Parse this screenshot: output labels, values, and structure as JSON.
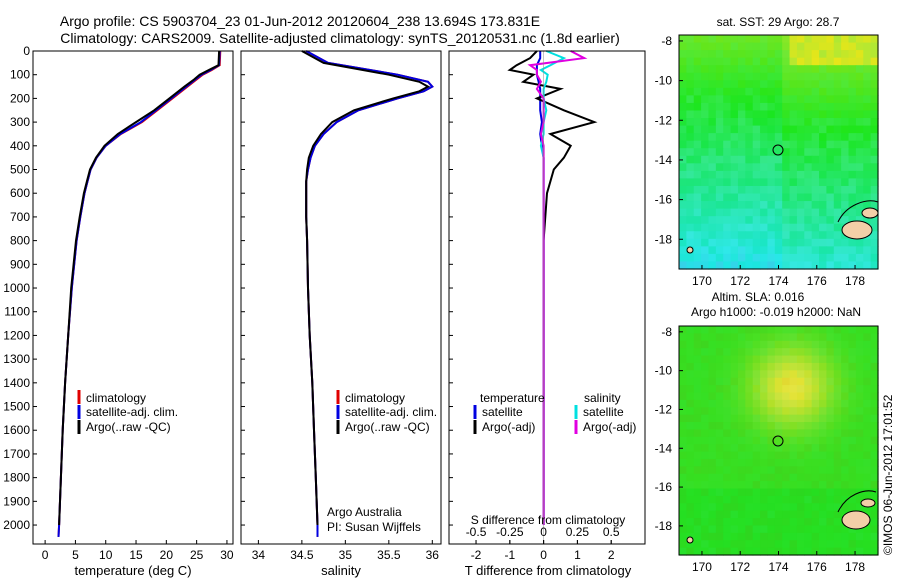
{
  "title_line1": "Argo profile: CS 5903704_23 01-Jun-2012 20120604_238 13.694S 173.831E",
  "title_line2": "Climatology: CARS2009. Satellite-adjusted climatology: synTS_20120531.nc (1.8d earlier)",
  "depth_ticks": [
    "0",
    "100",
    "200",
    "300",
    "400",
    "500",
    "600",
    "700",
    "800",
    "900",
    "1000",
    "1100",
    "1200",
    "1300",
    "1400",
    "1500",
    "1600",
    "1700",
    "1800",
    "1900",
    "2000"
  ],
  "colors": {
    "climatology": "#e00000",
    "satellite": "#0000e0",
    "argo": "#000000",
    "sal_satellite": "#00e0e0",
    "sal_argo": "#e000e0"
  },
  "temperature_panel": {
    "xlabel": "temperature (deg C)",
    "xticks": [
      "0",
      "5",
      "10",
      "15",
      "20",
      "25",
      "30"
    ],
    "legend": [
      "climatology",
      "satellite-adj. clim.",
      "Argo(..raw -QC)"
    ]
  },
  "salinity_panel": {
    "xlabel": "salinity",
    "xticks": [
      "34",
      "34.5",
      "35",
      "35.5",
      "36"
    ],
    "legend": [
      "climatology",
      "satellite-adj. clim.",
      "Argo(..raw -QC)"
    ],
    "note_line1": "Argo Australia",
    "note_line2": "PI: Susan Wijffels"
  },
  "diff_panel": {
    "xlabel_top": "S difference from climatology",
    "xlabel_bottom": "T difference from climatology",
    "top_ticks": [
      "-0.5",
      "-0.25",
      "0",
      "0.25",
      "0.5"
    ],
    "bottom_ticks": [
      "-2",
      "-1",
      "0",
      "1",
      "2"
    ],
    "legend_temp_title": "temperature",
    "legend_temp": [
      "satellite",
      "Argo(-adj)"
    ],
    "legend_sal_title": "salinity",
    "legend_sal": [
      "satellite",
      "Argo(-adj)"
    ]
  },
  "sst_map": {
    "title": "sat. SST: 29 Argo: 28.7",
    "yticks": [
      "-8",
      "-10",
      "-12",
      "-14",
      "-16",
      "-18"
    ],
    "xticks": [
      "170",
      "172",
      "174",
      "176",
      "178"
    ]
  },
  "sla_map": {
    "title_line1": "Altim. SLA: 0.016",
    "title_line2": "Argo h1000: -0.019 h2000: NaN",
    "yticks": [
      "-8",
      "-10",
      "-12",
      "-14",
      "-16",
      "-18"
    ],
    "xticks": [
      "170",
      "172",
      "174",
      "176",
      "178"
    ]
  },
  "side_stamp": "©IMOS 06-Jun-2012 17:01:52",
  "chart_data": [
    {
      "type": "line",
      "title": "",
      "xlabel": "temperature (deg C)",
      "ylabel": "",
      "xlim": [
        -2,
        31
      ],
      "ylim": [
        2080,
        0
      ],
      "y": [
        0,
        60,
        80,
        100,
        120,
        150,
        200,
        250,
        300,
        350,
        400,
        450,
        500,
        550,
        600,
        700,
        800,
        900,
        1000,
        1200,
        1400,
        1600,
        1800,
        2000,
        2050
      ],
      "series": [
        {
          "name": "climatology",
          "values": [
            28.9,
            28.8,
            27.5,
            26.0,
            25.0,
            23.5,
            21.0,
            18.5,
            16.0,
            12.5,
            10.0,
            8.5,
            7.5,
            7.0,
            6.5,
            5.8,
            5.2,
            4.8,
            4.4,
            3.8,
            3.3,
            2.9,
            2.6,
            2.3,
            2.2
          ]
        },
        {
          "name": "satellite-adj. clim.",
          "values": [
            28.8,
            28.7,
            27.3,
            25.8,
            24.8,
            23.3,
            20.8,
            18.3,
            15.8,
            12.4,
            10.0,
            8.5,
            7.5,
            7.0,
            6.5,
            5.8,
            5.2,
            4.8,
            4.4,
            3.8,
            3.3,
            2.9,
            2.6,
            2.3,
            2.2
          ]
        },
        {
          "name": "Argo(..raw -QC)",
          "values": [
            28.7,
            28.6,
            27.0,
            25.5,
            24.6,
            23.0,
            20.5,
            18.0,
            15.0,
            12.0,
            9.8,
            8.4,
            7.4,
            6.9,
            6.4,
            5.7,
            5.1,
            4.7,
            4.3,
            3.8,
            3.3,
            2.9,
            2.6,
            2.3,
            null
          ]
        }
      ]
    },
    {
      "type": "line",
      "title": "",
      "xlabel": "salinity",
      "ylabel": "",
      "xlim": [
        33.8,
        36.1
      ],
      "ylim": [
        2080,
        0
      ],
      "y": [
        0,
        50,
        100,
        130,
        150,
        170,
        200,
        250,
        300,
        350,
        400,
        450,
        500,
        550,
        600,
        700,
        800,
        1000,
        1200,
        1400,
        1600,
        1800,
        2000,
        2050
      ],
      "series": [
        {
          "name": "climatology",
          "values": [
            34.55,
            34.8,
            35.6,
            35.95,
            36.0,
            35.9,
            35.6,
            35.15,
            34.9,
            34.75,
            34.65,
            34.6,
            34.57,
            34.55,
            34.55,
            34.55,
            34.56,
            34.57,
            34.59,
            34.62,
            34.64,
            34.66,
            34.68,
            34.68
          ]
        },
        {
          "name": "satellite-adj. clim.",
          "values": [
            34.55,
            34.8,
            35.6,
            35.95,
            36.0,
            35.9,
            35.6,
            35.15,
            34.9,
            34.75,
            34.65,
            34.6,
            34.57,
            34.55,
            34.55,
            34.55,
            34.56,
            34.57,
            34.59,
            34.62,
            34.64,
            34.66,
            34.68,
            34.68
          ]
        },
        {
          "name": "Argo(..raw -QC)",
          "values": [
            34.5,
            34.75,
            35.5,
            35.85,
            35.95,
            35.85,
            35.55,
            35.1,
            34.85,
            34.72,
            34.63,
            34.58,
            34.56,
            34.55,
            34.55,
            34.55,
            34.56,
            34.57,
            34.59,
            34.62,
            34.64,
            34.66,
            34.68,
            null
          ]
        }
      ]
    },
    {
      "type": "line",
      "title": "",
      "xlabel": "T difference from climatology",
      "x2label": "S difference from climatology",
      "ylabel": "",
      "xlim": [
        -2.8,
        3.0
      ],
      "x2lim": [
        -0.7,
        0.75
      ],
      "ylim": [
        2080,
        0
      ],
      "y": [
        0,
        30,
        60,
        80,
        100,
        130,
        160,
        200,
        250,
        300,
        350,
        400,
        450,
        500,
        600,
        800,
        1000,
        1500,
        2000
      ],
      "series": [
        {
          "name": "temperature satellite",
          "axis": "T",
          "values": [
            -0.1,
            -0.1,
            -0.2,
            -0.2,
            -0.2,
            -0.15,
            -0.1,
            -0.1,
            -0.1,
            -0.05,
            -0.1,
            -0.05,
            0,
            0,
            0,
            0,
            0,
            0,
            0
          ]
        },
        {
          "name": "temperature Argo(-adj)",
          "axis": "T",
          "values": [
            -0.2,
            -0.4,
            -0.8,
            -1.0,
            -0.3,
            -0.6,
            0.5,
            -0.2,
            0.6,
            1.5,
            0.2,
            0.8,
            0.6,
            0.3,
            0.1,
            0,
            0,
            0,
            0
          ]
        },
        {
          "name": "salinity satellite",
          "axis": "S",
          "values": [
            0.02,
            0.15,
            0.05,
            -0.02,
            0.03,
            0.02,
            0.0,
            0.0,
            0.02,
            0.0,
            0.0,
            -0.02,
            0.0,
            0.0,
            0,
            0,
            0,
            0,
            0
          ]
        },
        {
          "name": "salinity Argo(-adj)",
          "axis": "S",
          "values": [
            0.2,
            0.3,
            -0.1,
            -0.05,
            -0.05,
            -0.02,
            -0.05,
            0.0,
            0.0,
            0.0,
            -0.02,
            0.0,
            0.0,
            0.0,
            0,
            0,
            0,
            0,
            0
          ]
        }
      ]
    },
    {
      "type": "heatmap",
      "title": "sat. SST: 29 Argo: 28.7",
      "xlabel": "",
      "ylabel": "",
      "xlim": [
        168.8,
        179.2
      ],
      "ylim": [
        -19.5,
        -7.7
      ],
      "profile_location": [
        173.831,
        -13.694
      ]
    },
    {
      "type": "heatmap",
      "title": "Altim. SLA: 0.016",
      "xlabel": "",
      "ylabel": "",
      "xlim": [
        168.8,
        179.2
      ],
      "ylim": [
        -19.5,
        -7.7
      ],
      "profile_location": [
        173.831,
        -13.694
      ]
    }
  ]
}
